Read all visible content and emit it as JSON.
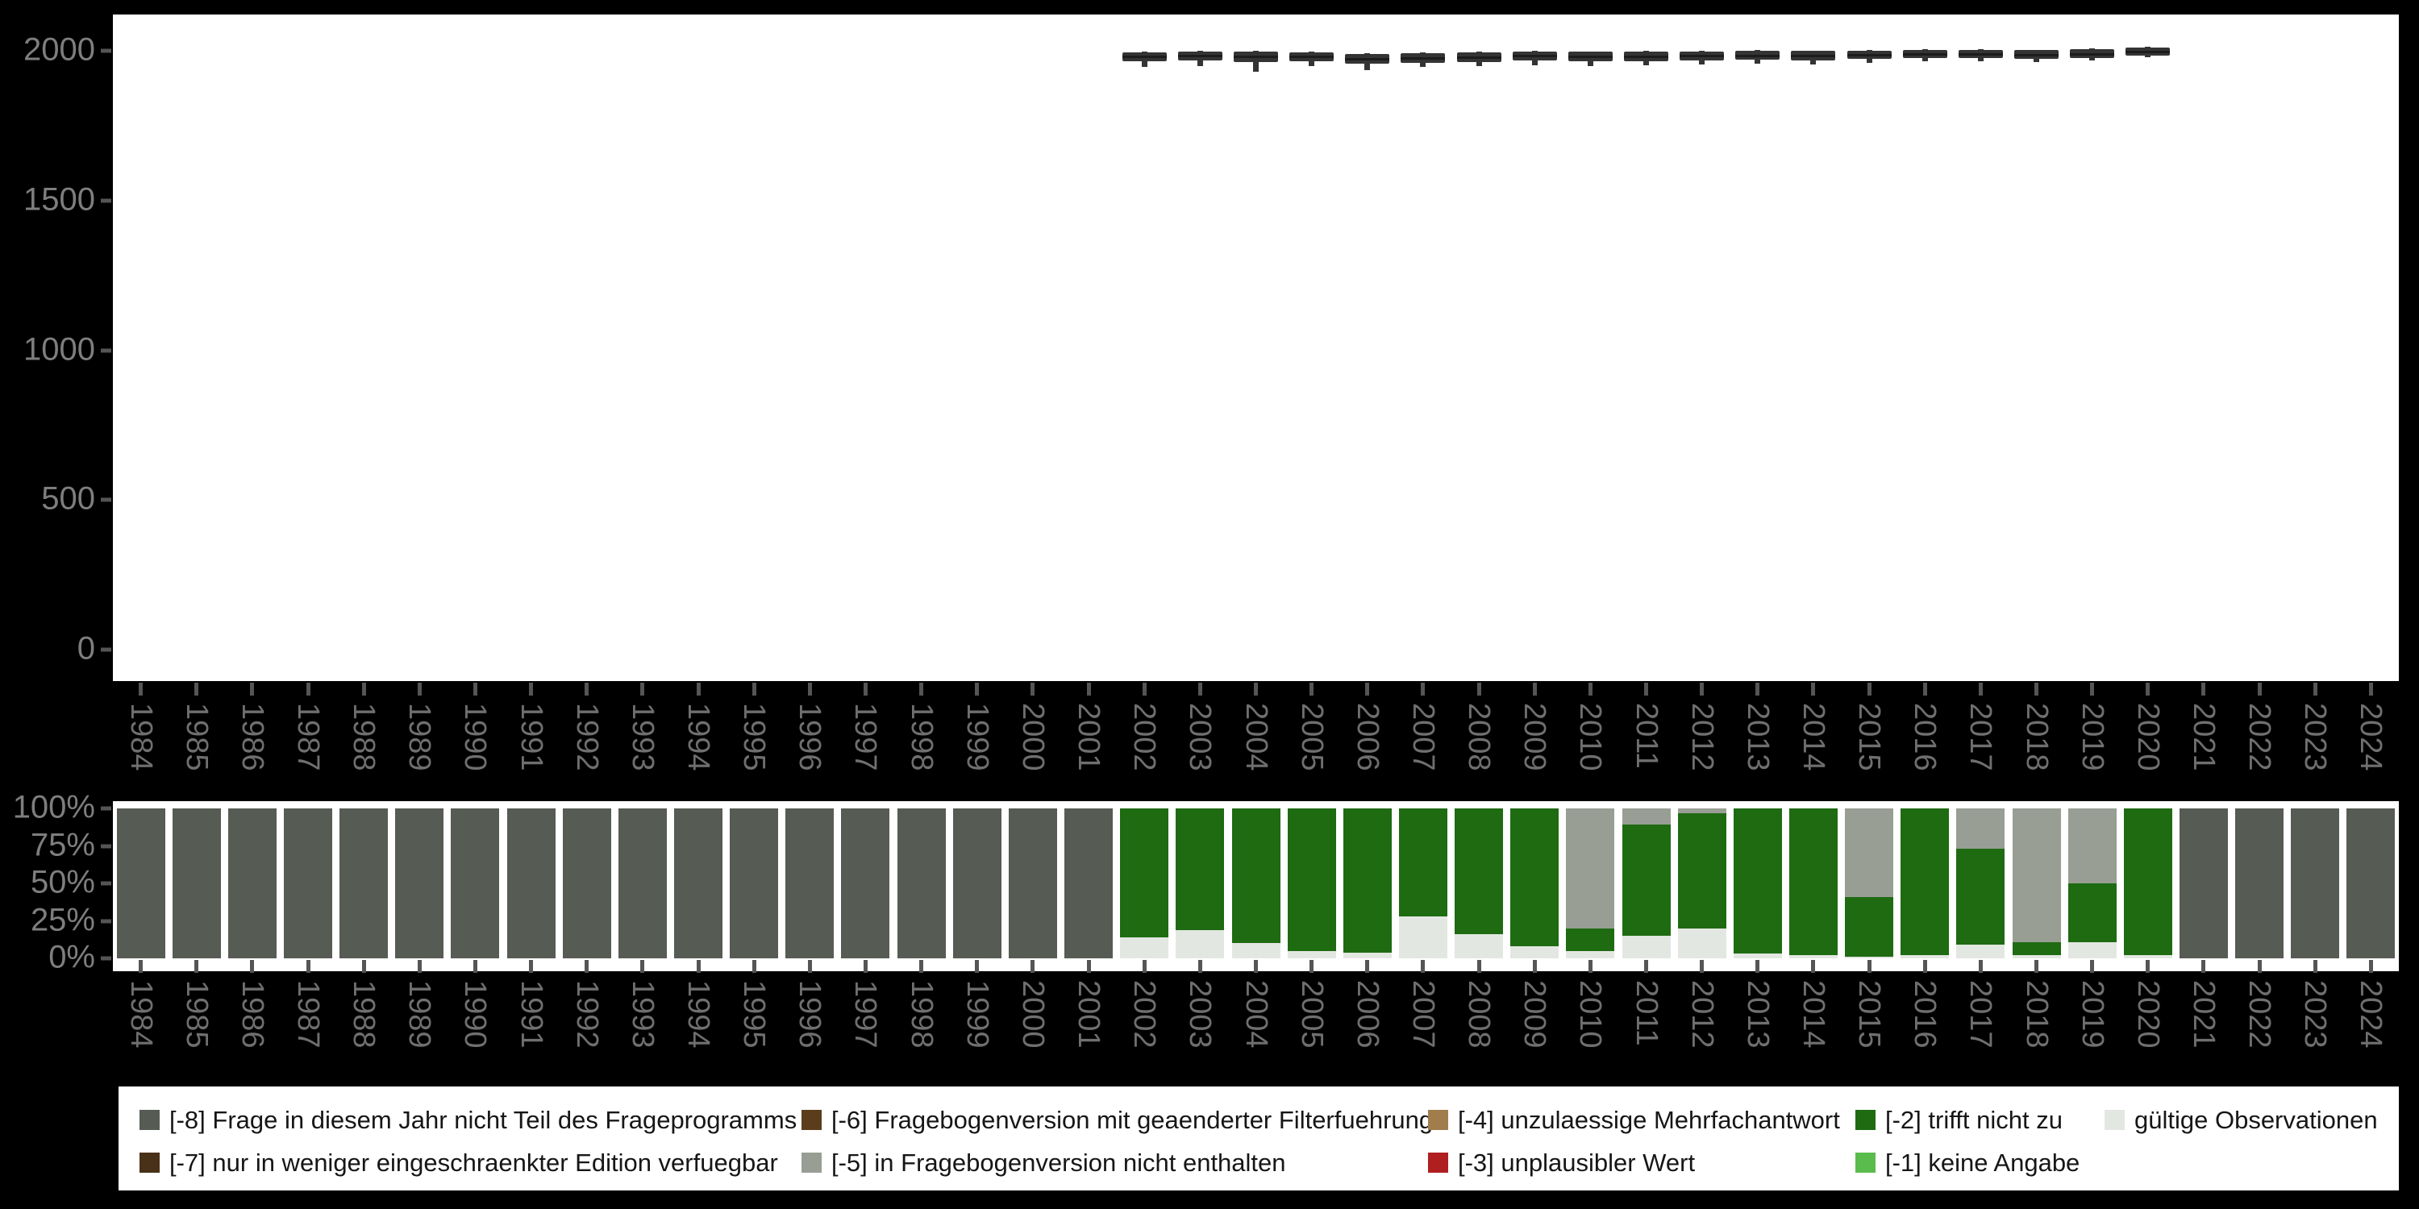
{
  "figure": {
    "background": "#000000",
    "panel_background": "#ffffff",
    "axis_label_color": "#7e7e7e",
    "year_label_color": "#6f6f6f",
    "tick_color": "#555555"
  },
  "years": [
    "1984",
    "1985",
    "1986",
    "1987",
    "1988",
    "1989",
    "1990",
    "1991",
    "1992",
    "1993",
    "1994",
    "1995",
    "1996",
    "1997",
    "1998",
    "1999",
    "2000",
    "2001",
    "2002",
    "2003",
    "2004",
    "2005",
    "2006",
    "2007",
    "2008",
    "2009",
    "2010",
    "2011",
    "2012",
    "2013",
    "2014",
    "2015",
    "2016",
    "2017",
    "2018",
    "2019",
    "2020",
    "2021",
    "2022",
    "2023",
    "2024"
  ],
  "chart_data": [
    {
      "type": "boxplot",
      "title": "",
      "xlabel": "",
      "ylabel": "",
      "x_categories": [
        "1984",
        "1985",
        "1986",
        "1987",
        "1988",
        "1989",
        "1990",
        "1991",
        "1992",
        "1993",
        "1994",
        "1995",
        "1996",
        "1997",
        "1998",
        "1999",
        "2000",
        "2001",
        "2002",
        "2003",
        "2004",
        "2005",
        "2006",
        "2007",
        "2008",
        "2009",
        "2010",
        "2011",
        "2012",
        "2013",
        "2014",
        "2015",
        "2016",
        "2017",
        "2018",
        "2019",
        "2020",
        "2021",
        "2022",
        "2023",
        "2024"
      ],
      "y_ticks": [
        0,
        500,
        1000,
        1500,
        2000
      ],
      "y_tick_labels": [
        "0",
        "500",
        "1000",
        "1500",
        "2000"
      ],
      "ylim": [
        0,
        2120
      ],
      "grid": "off",
      "box_color": "#343434",
      "boxes": [
        {
          "year": "2002",
          "low": 1945,
          "q1": 1965,
          "median": 1980,
          "q3": 1995,
          "high": 1997
        },
        {
          "year": "2003",
          "low": 1950,
          "q1": 1968,
          "median": 1983,
          "q3": 1998,
          "high": 2000
        },
        {
          "year": "2004",
          "low": 1930,
          "q1": 1962,
          "median": 1980,
          "q3": 1998,
          "high": 2000
        },
        {
          "year": "2005",
          "low": 1950,
          "q1": 1965,
          "median": 1980,
          "q3": 1995,
          "high": 1997
        },
        {
          "year": "2006",
          "low": 1935,
          "q1": 1958,
          "median": 1974,
          "q3": 1990,
          "high": 1992
        },
        {
          "year": "2007",
          "low": 1945,
          "q1": 1960,
          "median": 1976,
          "q3": 1992,
          "high": 1994
        },
        {
          "year": "2008",
          "low": 1948,
          "q1": 1962,
          "median": 1978,
          "q3": 1994,
          "high": 1996
        },
        {
          "year": "2009",
          "low": 1952,
          "q1": 1968,
          "median": 1983,
          "q3": 1998,
          "high": 2000
        },
        {
          "year": "2010",
          "low": 1950,
          "q1": 1965,
          "median": 1980,
          "q3": 1996,
          "high": 1998
        },
        {
          "year": "2011",
          "low": 1952,
          "q1": 1966,
          "median": 1981,
          "q3": 1997,
          "high": 1999
        },
        {
          "year": "2012",
          "low": 1955,
          "q1": 1968,
          "median": 1983,
          "q3": 1998,
          "high": 2000
        },
        {
          "year": "2013",
          "low": 1958,
          "q1": 1970,
          "median": 1985,
          "q3": 2000,
          "high": 2002
        },
        {
          "year": "2014",
          "low": 1955,
          "q1": 1968,
          "median": 1983,
          "q3": 1999,
          "high": 2001
        },
        {
          "year": "2015",
          "low": 1960,
          "q1": 1972,
          "median": 1986,
          "q3": 2001,
          "high": 2003
        },
        {
          "year": "2016",
          "low": 1965,
          "q1": 1975,
          "median": 1989,
          "q3": 2003,
          "high": 2005
        },
        {
          "year": "2017",
          "low": 1966,
          "q1": 1975,
          "median": 1989,
          "q3": 2004,
          "high": 2006
        },
        {
          "year": "2018",
          "low": 1962,
          "q1": 1972,
          "median": 1987,
          "q3": 2002,
          "high": 2004
        },
        {
          "year": "2019",
          "low": 1968,
          "q1": 1976,
          "median": 1990,
          "q3": 2005,
          "high": 2007
        },
        {
          "year": "2020",
          "low": 1980,
          "q1": 1985,
          "median": 1998,
          "q3": 2012,
          "high": 2014
        }
      ]
    },
    {
      "type": "bar",
      "subtype": "stacked-percent",
      "title": "",
      "xlabel": "",
      "ylabel": "",
      "categories": [
        "1984",
        "1985",
        "1986",
        "1987",
        "1988",
        "1989",
        "1990",
        "1991",
        "1992",
        "1993",
        "1994",
        "1995",
        "1996",
        "1997",
        "1998",
        "1999",
        "2000",
        "2001",
        "2002",
        "2003",
        "2004",
        "2005",
        "2006",
        "2007",
        "2008",
        "2009",
        "2010",
        "2011",
        "2012",
        "2013",
        "2014",
        "2015",
        "2016",
        "2017",
        "2018",
        "2019",
        "2020",
        "2021",
        "2022",
        "2023",
        "2024"
      ],
      "y_ticks": [
        0,
        25,
        50,
        75,
        100
      ],
      "y_tick_labels": [
        "0%",
        "25%",
        "50%",
        "75%",
        "100%"
      ],
      "ylim": [
        0,
        100
      ],
      "grid": "off",
      "stack_order_bottom_to_top": [
        "gueltige Observationen",
        "[-2] trifft nicht zu",
        "[-5] in Fragebogenversion nicht enthalten",
        "[-8] Frage in diesem Jahr nicht Teil des Frageprogramms"
      ],
      "series": [
        {
          "name": "gueltige Observationen",
          "color": "#E3E7E1",
          "values": [
            0,
            0,
            0,
            0,
            0,
            0,
            0,
            0,
            0,
            0,
            0,
            0,
            0,
            0,
            0,
            0,
            0,
            0,
            14,
            19,
            10,
            5,
            4,
            28,
            16,
            8,
            5,
            15,
            20,
            3,
            2,
            1,
            2,
            9,
            2,
            11,
            2,
            0,
            0,
            0,
            0
          ]
        },
        {
          "name": "[-2] trifft nicht zu",
          "color": "#1E6B12",
          "values": [
            0,
            0,
            0,
            0,
            0,
            0,
            0,
            0,
            0,
            0,
            0,
            0,
            0,
            0,
            0,
            0,
            0,
            0,
            86,
            81,
            90,
            95,
            96,
            72,
            84,
            92,
            15,
            74,
            77,
            97,
            98,
            40,
            98,
            64,
            9,
            39,
            98,
            0,
            0,
            0,
            0
          ]
        },
        {
          "name": "[-5] in Fragebogenversion nicht enthalten",
          "color": "#999E94",
          "values": [
            0,
            0,
            0,
            0,
            0,
            0,
            0,
            0,
            0,
            0,
            0,
            0,
            0,
            0,
            0,
            0,
            0,
            0,
            0,
            0,
            0,
            0,
            0,
            0,
            0,
            0,
            80,
            11,
            3,
            0,
            0,
            59,
            0,
            27,
            89,
            50,
            0,
            0,
            0,
            0,
            0
          ]
        },
        {
          "name": "[-8] Frage in diesem Jahr nicht Teil des Frageprogramms",
          "color": "#565B54",
          "values": [
            100,
            100,
            100,
            100,
            100,
            100,
            100,
            100,
            100,
            100,
            100,
            100,
            100,
            100,
            100,
            100,
            100,
            100,
            0,
            0,
            0,
            0,
            0,
            0,
            0,
            0,
            0,
            0,
            0,
            0,
            0,
            0,
            0,
            0,
            0,
            0,
            0,
            100,
            100,
            100,
            100
          ]
        }
      ]
    }
  ],
  "legend": {
    "background": "#ffffff",
    "text_color": "#161616",
    "items": [
      {
        "label": "[-8] Frage in diesem Jahr nicht Teil des Frageprogramms",
        "color": "#565B54",
        "row": 0,
        "col": 0
      },
      {
        "label": "[-7] nur in weniger eingeschraenkter Edition verfuegbar",
        "color": "#483019",
        "row": 1,
        "col": 0
      },
      {
        "label": "[-6] Fragebogenversion mit geaenderter Filterfuehrung",
        "color": "#5A3E1C",
        "row": 0,
        "col": 1
      },
      {
        "label": "[-5] in Fragebogenversion nicht enthalten",
        "color": "#999E94",
        "row": 1,
        "col": 1
      },
      {
        "label": "[-4] unzulaessige Mehrfachantwort",
        "color": "#A17C4C",
        "row": 0,
        "col": 2
      },
      {
        "label": "[-3] unplausibler Wert",
        "color": "#B01F1F",
        "row": 1,
        "col": 2
      },
      {
        "label": "[-2] trifft nicht zu",
        "color": "#1E6B12",
        "row": 0,
        "col": 3
      },
      {
        "label": "[-1] keine Angabe",
        "color": "#5BBC4E",
        "row": 1,
        "col": 3
      },
      {
        "label": "gültige Observationen",
        "color": "#E3E7E1",
        "row": 0,
        "col": 4
      }
    ]
  }
}
